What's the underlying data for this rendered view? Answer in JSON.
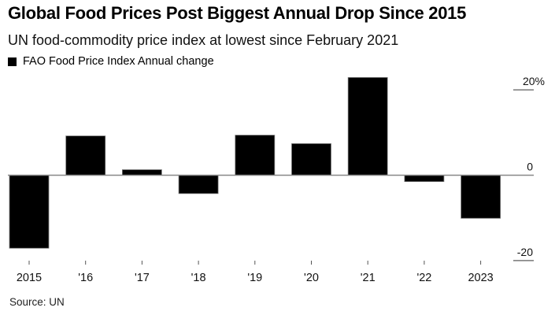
{
  "chart_data": {
    "type": "bar",
    "title": "Global Food Prices Post Biggest Annual Drop Since 2015",
    "subtitle": "UN food-commodity price index at lowest since February 2021",
    "categories": [
      "2015",
      "'16",
      "'17",
      "'18",
      "'19",
      "'20",
      "'21",
      "'22",
      "2023"
    ],
    "series": [
      {
        "name": "FAO Food Price Index Annual change",
        "color": "#000000",
        "values": [
          -17.1,
          9.2,
          1.3,
          -4.3,
          9.4,
          7.4,
          22.9,
          -1.5,
          -10.1
        ]
      }
    ],
    "xlabel": "",
    "ylabel": "",
    "ylim": [
      -20,
      22.9
    ],
    "yticks": [
      20,
      0,
      -20
    ],
    "ytick_labels": [
      "20%",
      "0",
      "-20"
    ],
    "y_axis_position": "right",
    "legend_position": "top-left",
    "grid": false,
    "source": "Source: UN"
  }
}
